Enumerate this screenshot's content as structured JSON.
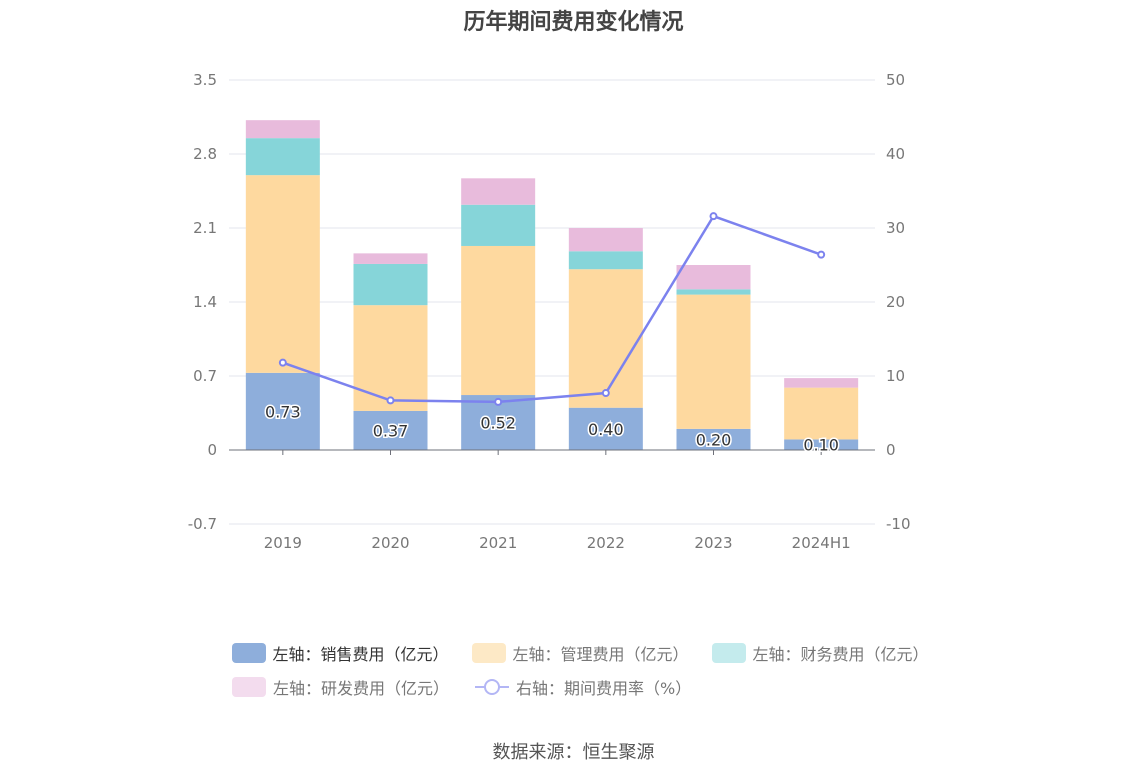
{
  "chart_data": {
    "type": "bar",
    "title": "历年期间费用变化情况",
    "categories": [
      "2019",
      "2020",
      "2021",
      "2022",
      "2023",
      "2024H1"
    ],
    "left_axis": {
      "ylim": [
        -0.7,
        3.5
      ],
      "ticks": [
        "3.5",
        "2.8",
        "2.1",
        "1.4",
        "0.7",
        "0",
        "-0.7"
      ]
    },
    "right_axis": {
      "ylim": [
        -10,
        50
      ],
      "ticks": [
        "50",
        "40",
        "30",
        "20",
        "10",
        "0",
        "-10"
      ]
    },
    "stacked": true,
    "series": [
      {
        "name": "左轴：销售费用（亿元）",
        "axis": "left",
        "type": "bar",
        "color": "#8eaedb",
        "values": [
          0.73,
          0.37,
          0.52,
          0.4,
          0.2,
          0.1
        ],
        "labels": [
          "0.73",
          "0.37",
          "0.52",
          "0.40",
          "0.20",
          "0.10"
        ]
      },
      {
        "name": "左轴：管理费用（亿元）",
        "axis": "left",
        "type": "bar",
        "color": "#fed99f",
        "values": [
          1.87,
          1.0,
          1.41,
          1.31,
          1.27,
          0.49
        ]
      },
      {
        "name": "左轴：财务费用（亿元）",
        "axis": "left",
        "type": "bar",
        "color": "#86d5d9",
        "values": [
          0.35,
          0.39,
          0.39,
          0.17,
          0.05,
          0.0
        ]
      },
      {
        "name": "左轴：研发费用（亿元）",
        "axis": "left",
        "type": "bar",
        "color": "#e8bbdc",
        "values": [
          0.17,
          0.1,
          0.25,
          0.22,
          0.23,
          0.09
        ]
      },
      {
        "name": "右轴：期间费用率（%）",
        "axis": "right",
        "type": "line",
        "color": "#7c82ee",
        "values": [
          11.8,
          6.7,
          6.5,
          7.7,
          31.6,
          26.4
        ]
      }
    ],
    "legend_position": "bottom",
    "grid": true
  },
  "source": "数据来源：恒生聚源",
  "icons": {
    "line_marker": "circle-marker-icon"
  }
}
